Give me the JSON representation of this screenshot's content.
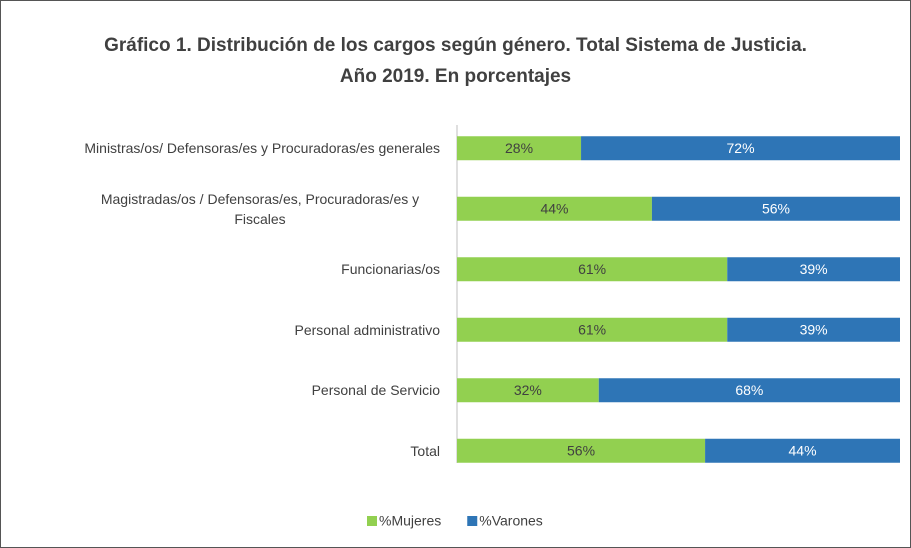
{
  "chart_data": {
    "type": "stacked-barh",
    "title": "Gráfico 1. Distribución de los cargos según género. Total Sistema de Justicia. Año 2019.  En porcentajes",
    "categories": [
      "Ministras/os/ Defensoras/es y Procuradoras/es generales",
      "Magistradas/os / Defensoras/es, Procuradoras/es y Fiscales",
      "Funcionarias/os",
      "Personal administrativo",
      "Personal de Servicio",
      "Total"
    ],
    "series": [
      {
        "name": "%Mujeres",
        "color": "#92d050",
        "label_color": "#404040",
        "values": [
          28,
          44,
          61,
          61,
          32,
          56
        ],
        "value_labels": [
          "28%",
          "44%",
          "61%",
          "61%",
          "32%",
          "56%"
        ]
      },
      {
        "name": "%Varones",
        "color": "#2e75b6",
        "label_color": "#ffffff",
        "values": [
          72,
          56,
          39,
          39,
          68,
          44
        ],
        "value_labels": [
          "72%",
          "56%",
          "39%",
          "39%",
          "68%",
          "44%"
        ]
      }
    ],
    "xlim": [
      0,
      100
    ],
    "legend": "bottom"
  }
}
